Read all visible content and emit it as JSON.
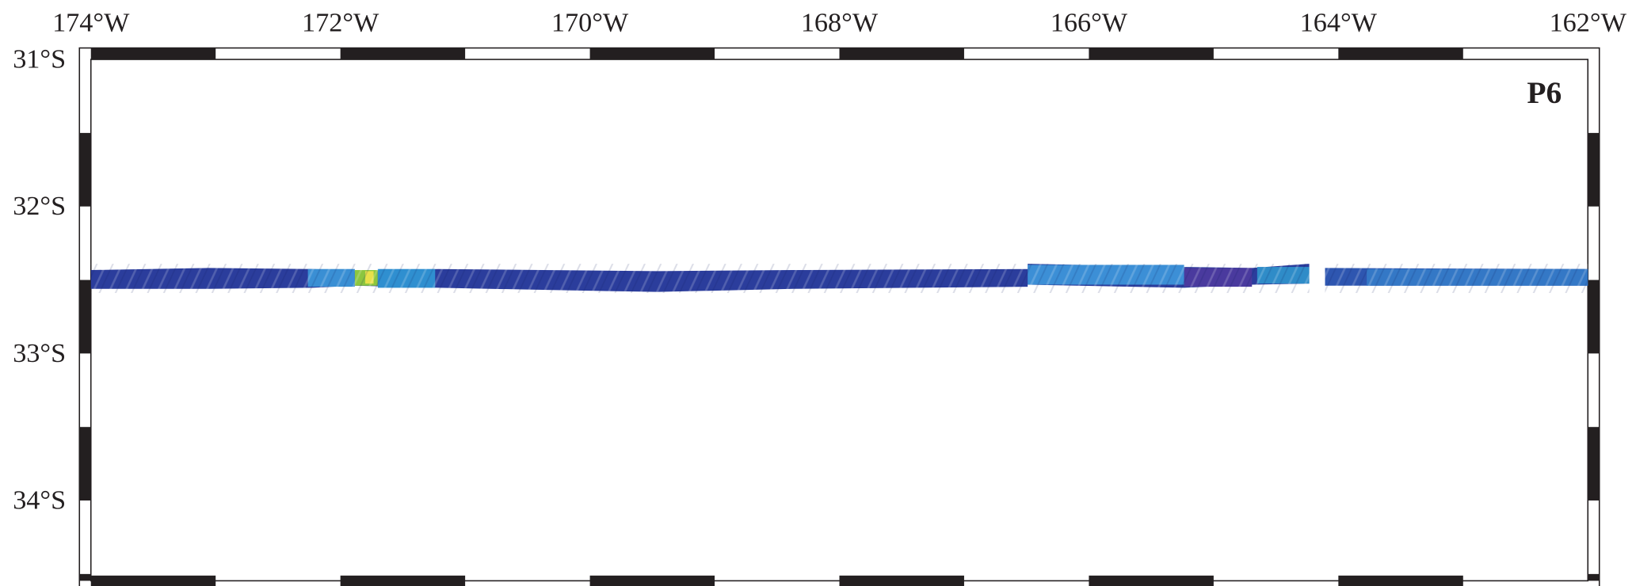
{
  "map": {
    "label": "P6",
    "lon_labels": [
      "174°W",
      "172°W",
      "170°W",
      "168°W",
      "166°W",
      "164°W",
      "162°W"
    ],
    "lat_labels": [
      "31°S",
      "32°S",
      "33°S",
      "34°S"
    ]
  }
}
